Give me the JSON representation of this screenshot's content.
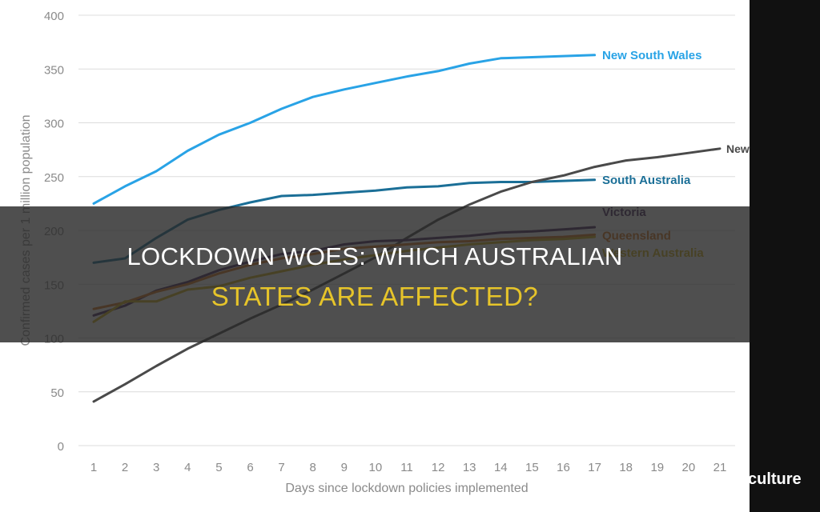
{
  "banner": {
    "line1": "LOCKDOWN WOES: WHICH AUSTRALIAN",
    "line2": "STATES ARE AFFECTED?"
  },
  "brand": {
    "text": "culture"
  },
  "colors": {
    "background": "#ffffff",
    "grid": "#dcdcdc",
    "axis_text": "#8a8a8a",
    "banner_title": "#ffffff",
    "banner_highlight": "#e6c42a",
    "brand_strip": "#111111"
  },
  "chart_data": {
    "type": "line",
    "title": "",
    "xlabel": "Days since lockdown policies implemented",
    "ylabel": "Confirmed cases per 1 million population",
    "xlim": [
      1,
      21
    ],
    "ylim": [
      0,
      400
    ],
    "xticks": [
      1,
      2,
      3,
      4,
      5,
      6,
      7,
      8,
      9,
      10,
      11,
      12,
      13,
      14,
      15,
      16,
      17,
      18,
      19,
      20,
      21
    ],
    "yticks": [
      0,
      50,
      100,
      150,
      200,
      250,
      300,
      350,
      400
    ],
    "grid": true,
    "legend": "end-of-line labels",
    "series": [
      {
        "name": "New South Wales",
        "color": "#29a3e6",
        "x": [
          1,
          2,
          3,
          4,
          5,
          6,
          7,
          8,
          9,
          10,
          11,
          12,
          13,
          14,
          15,
          16,
          17
        ],
        "values": [
          225,
          241,
          255,
          274,
          289,
          300,
          313,
          324,
          331,
          337,
          343,
          348,
          355,
          360,
          361,
          362,
          363
        ]
      },
      {
        "name": "South Australia",
        "color": "#1b6f97",
        "x": [
          1,
          2,
          3,
          4,
          5,
          6,
          7,
          8,
          9,
          10,
          11,
          12,
          13,
          14,
          15,
          16,
          17
        ],
        "values": [
          170,
          174,
          193,
          210,
          219,
          226,
          232,
          233,
          235,
          237,
          240,
          241,
          244,
          245,
          245,
          246,
          247
        ]
      },
      {
        "name": "New Zealand",
        "color": "#4a4a4a",
        "x": [
          1,
          2,
          3,
          4,
          5,
          6,
          7,
          8,
          9,
          10,
          11,
          12,
          13,
          14,
          15,
          16,
          17,
          18,
          19,
          20,
          21
        ],
        "values": [
          41,
          57,
          74,
          90,
          104,
          118,
          131,
          145,
          160,
          175,
          193,
          210,
          224,
          236,
          245,
          251,
          259,
          265,
          268,
          272,
          276
        ]
      },
      {
        "name": "Victoria",
        "color": "#4a2a5e",
        "x": [
          1,
          2,
          3,
          4,
          5,
          6,
          7,
          8,
          9,
          10,
          11,
          12,
          13,
          14,
          15,
          16,
          17
        ],
        "values": [
          121,
          130,
          144,
          152,
          163,
          171,
          178,
          181,
          187,
          190,
          191,
          193,
          195,
          198,
          199,
          201,
          203
        ]
      },
      {
        "name": "Queensland",
        "color": "#d9761f",
        "x": [
          1,
          2,
          3,
          4,
          5,
          6,
          7,
          8,
          9,
          10,
          11,
          12,
          13,
          14,
          15,
          16,
          17
        ],
        "values": [
          127,
          133,
          143,
          150,
          160,
          168,
          174,
          178,
          183,
          185,
          187,
          189,
          190,
          192,
          193,
          194,
          196
        ]
      },
      {
        "name": "Western Australia",
        "color": "#d4b21a",
        "x": [
          1,
          2,
          3,
          4,
          5,
          6,
          7,
          8,
          9,
          10,
          11,
          12,
          13,
          14,
          15,
          16,
          17
        ],
        "values": [
          115,
          134,
          134,
          145,
          148,
          156,
          162,
          168,
          173,
          177,
          181,
          184,
          187,
          189,
          191,
          192,
          194
        ]
      }
    ]
  }
}
